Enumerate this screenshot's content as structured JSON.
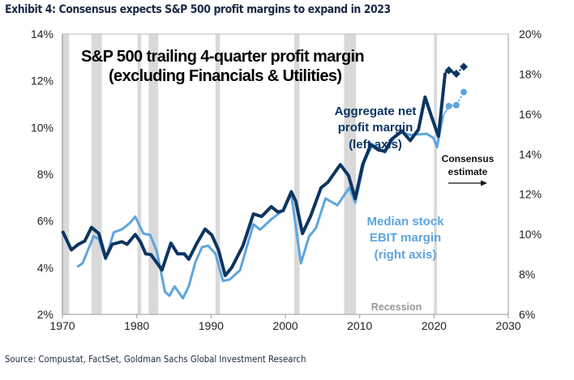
{
  "exhibit_title": "Exhibit 4: Consensus expects S&P 500 profit margins to expand in 2023",
  "source": "Source: Compustat, FactSet, Goldman Sachs Global Investment Research",
  "colors": {
    "aggregate": "#0c3561",
    "median": "#5ea5dd",
    "recession": "#d9d9d9"
  },
  "chart_data": {
    "type": "line",
    "title": "S&P 500 trailing 4-quarter profit margin",
    "subtitle": "(excluding Financials & Utilities)",
    "xlim": [
      1970,
      2030
    ],
    "x_ticks": [
      "1970",
      "1980",
      "1990",
      "2000",
      "2010",
      "2020",
      "2030"
    ],
    "ylim_left": [
      2,
      14
    ],
    "y_ticks_left": [
      "2%",
      "4%",
      "6%",
      "8%",
      "10%",
      "12%",
      "14%"
    ],
    "ylim_right": [
      6,
      20
    ],
    "y_ticks_right": [
      "6%",
      "8%",
      "10%",
      "12%",
      "14%",
      "16%",
      "18%",
      "20%"
    ],
    "grid": false,
    "recessions_label": "Recession",
    "recessions": [
      [
        1969.9,
        1970.9
      ],
      [
        1973.9,
        1975.3
      ],
      [
        1980.1,
        1980.6
      ],
      [
        1981.6,
        1982.9
      ],
      [
        1990.6,
        1991.2
      ],
      [
        2001.2,
        2001.9
      ],
      [
        2007.9,
        2009.5
      ],
      [
        2020.0,
        2020.4
      ]
    ],
    "annotations": {
      "consensus": [
        "Consensus",
        "estimate"
      ]
    },
    "series": [
      {
        "name": "Aggregate net profit margin (left axis)",
        "label_lines": [
          "Aggregate net",
          "profit margin",
          "(left axis)"
        ],
        "axis": "left",
        "x": [
          1970.0,
          1971.2,
          1972.1,
          1973.0,
          1973.9,
          1974.9,
          1975.8,
          1976.7,
          1978.0,
          1978.7,
          1979.8,
          1980.5,
          1981.2,
          1981.9,
          1983.4,
          1984.6,
          1985.5,
          1986.4,
          1987.0,
          1988.1,
          1989.2,
          1990.1,
          1991.0,
          1991.9,
          1992.8,
          1994.3,
          1995.7,
          1996.8,
          1998.1,
          1999.0,
          1999.7,
          2000.8,
          2001.4,
          2002.3,
          2003.4,
          2004.8,
          2005.7,
          2007.4,
          2008.5,
          2009.4,
          2010.4,
          2011.5,
          2012.5,
          2013.4,
          2014.3,
          2015.7,
          2016.8,
          2017.9,
          2018.8,
          2019.7,
          2020.6,
          2021.5
        ],
        "y": [
          5.57,
          4.76,
          4.99,
          5.14,
          5.72,
          5.46,
          4.42,
          5.0,
          5.11,
          5.0,
          5.42,
          5.1,
          4.59,
          4.56,
          3.9,
          5.05,
          4.59,
          4.59,
          4.36,
          5.05,
          5.65,
          5.4,
          4.76,
          3.66,
          4.01,
          4.94,
          6.3,
          6.19,
          6.61,
          6.38,
          6.44,
          7.25,
          6.85,
          5.46,
          6.21,
          7.42,
          7.65,
          8.41,
          7.94,
          6.96,
          8.41,
          9.27,
          9.04,
          8.98,
          9.5,
          9.85,
          9.44,
          9.91,
          11.3,
          10.43,
          9.62,
          12.34
        ],
        "estimate_x": [
          2022,
          2023,
          2024
        ],
        "estimate_y": [
          12.45,
          12.3,
          12.6
        ]
      },
      {
        "name": "Median stock EBIT margin (right axis)",
        "label_lines": [
          "Median stock",
          "EBIT margin",
          "(right axis)"
        ],
        "axis": "right",
        "x": [
          1972.0,
          1972.7,
          1974.2,
          1974.9,
          1975.8,
          1976.9,
          1978.0,
          1979.1,
          1979.8,
          1980.9,
          1981.8,
          1982.7,
          1983.8,
          1984.4,
          1985.1,
          1986.2,
          1987.0,
          1987.9,
          1988.8,
          1989.6,
          1990.6,
          1991.6,
          1992.5,
          1993.9,
          1995.7,
          1996.6,
          1998.2,
          1999.7,
          2000.8,
          2002.1,
          2003.2,
          2004.1,
          2005.4,
          2007.0,
          2008.6,
          2009.4,
          2010.6,
          2011.7,
          2013.4,
          2014.6,
          2015.7,
          2016.8,
          2019.0,
          2019.9,
          2020.4,
          2021.2
        ],
        "y": [
          8.37,
          8.55,
          9.9,
          9.76,
          8.75,
          10.1,
          10.24,
          10.57,
          10.88,
          10.03,
          9.97,
          9.16,
          7.13,
          6.93,
          7.4,
          6.8,
          7.4,
          8.62,
          9.36,
          9.43,
          9.02,
          7.67,
          7.74,
          8.21,
          10.5,
          10.23,
          10.78,
          11.2,
          12.0,
          8.55,
          9.9,
          10.3,
          11.79,
          11.45,
          12.33,
          11.58,
          13.6,
          14.49,
          14.08,
          14.82,
          15.09,
          14.96,
          15.02,
          14.82,
          14.35,
          15.9
        ],
        "estimate_x": [
          2022,
          2023,
          2024
        ],
        "estimate_y": [
          16.4,
          16.45,
          17.1
        ]
      }
    ]
  }
}
